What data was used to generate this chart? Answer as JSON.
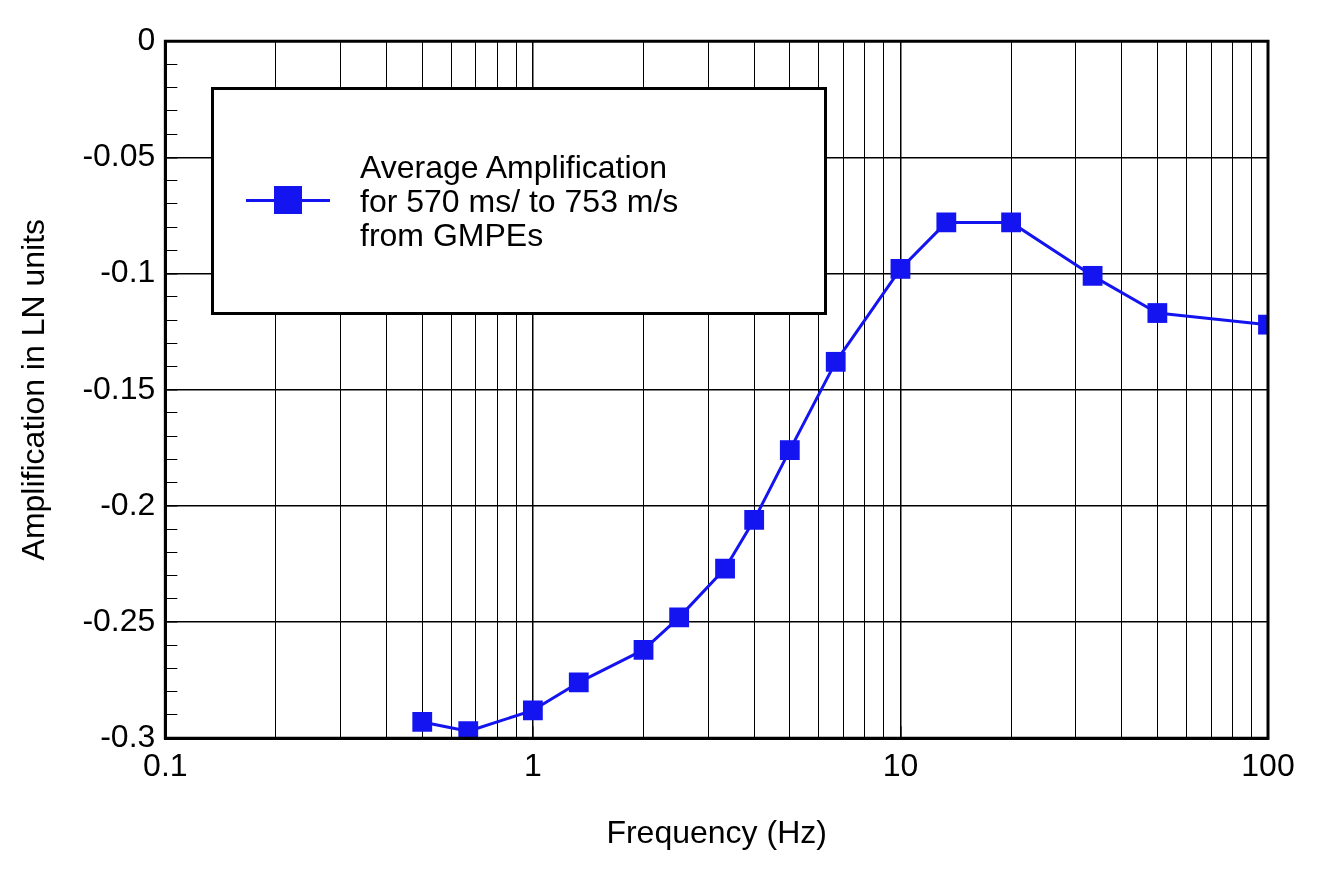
{
  "chart_data": {
    "type": "line",
    "xlabel": "Frequency (Hz)",
    "ylabel": "Amplification in LN units",
    "x": [
      0.5,
      0.667,
      1,
      1.333,
      2,
      2.5,
      3.333,
      4,
      5,
      6.667,
      10,
      13.33,
      20,
      33.33,
      50,
      100
    ],
    "series": [
      {
        "name": "Average Amplification\nfor 570 ms/ to 753 m/s\nfrom GMPEs",
        "color": "#1414f0",
        "values": [
          -0.293,
          -0.297,
          -0.288,
          -0.276,
          -0.262,
          -0.248,
          -0.227,
          -0.206,
          -0.176,
          -0.138,
          -0.098,
          -0.078,
          -0.078,
          -0.101,
          -0.117,
          -0.122
        ]
      }
    ],
    "log": "x",
    "xlim": [
      0.1,
      100
    ],
    "xticks": [
      0.1,
      {
        "value": 0.2,
        "label": null
      },
      {
        "value": 0.3,
        "label": null
      },
      {
        "value": 0.4,
        "label": null
      },
      {
        "value": 0.5,
        "label": null
      },
      {
        "value": 0.6,
        "label": null
      },
      {
        "value": 0.7,
        "label": null
      },
      {
        "value": 0.8,
        "label": null
      },
      {
        "value": 0.9,
        "label": null
      },
      1,
      {
        "value": 2,
        "label": null
      },
      {
        "value": 3,
        "label": null
      },
      {
        "value": 4,
        "label": null
      },
      {
        "value": 5,
        "label": null
      },
      {
        "value": 6,
        "label": null
      },
      {
        "value": 7,
        "label": null
      },
      {
        "value": 8,
        "label": null
      },
      {
        "value": 9,
        "label": null
      },
      10,
      {
        "value": 20,
        "label": null
      },
      {
        "value": 30,
        "label": null
      },
      {
        "value": 40,
        "label": null
      },
      {
        "value": 50,
        "label": null
      },
      {
        "value": 60,
        "label": null
      },
      {
        "value": 70,
        "label": null
      },
      {
        "value": 80,
        "label": null
      },
      {
        "value": 90,
        "label": null
      },
      100
    ],
    "ylim": [
      -0.3,
      0
    ],
    "yticks": [
      -0.3,
      {
        "value": -0.29,
        "label": null
      },
      {
        "value": -0.28,
        "label": null
      },
      {
        "value": -0.27,
        "label": null
      },
      {
        "value": -0.26,
        "label": null
      },
      -0.25,
      {
        "value": -0.24,
        "label": null
      },
      {
        "value": -0.23,
        "label": null
      },
      {
        "value": -0.22,
        "label": null
      },
      {
        "value": -0.21,
        "label": null
      },
      -0.2,
      {
        "value": -0.19,
        "label": null
      },
      {
        "value": -0.18,
        "label": null
      },
      {
        "value": -0.17,
        "label": null
      },
      {
        "value": -0.16,
        "label": null
      },
      -0.15,
      {
        "value": -0.14,
        "label": null
      },
      {
        "value": -0.13,
        "label": null
      },
      {
        "value": -0.12,
        "label": null
      },
      {
        "value": -0.11,
        "label": null
      },
      -0.1,
      {
        "value": -0.09,
        "label": null
      },
      {
        "value": -0.08,
        "label": null
      },
      {
        "value": -0.07,
        "label": null
      },
      {
        "value": -0.06,
        "label": null
      },
      -0.05,
      {
        "value": -0.04,
        "label": null
      },
      {
        "value": -0.03,
        "label": null
      },
      {
        "value": -0.02,
        "label": null
      },
      {
        "value": -0.01,
        "label": null
      },
      0
    ],
    "grid": true,
    "legend": "top left",
    "marker": "square",
    "line_style": "solid"
  }
}
